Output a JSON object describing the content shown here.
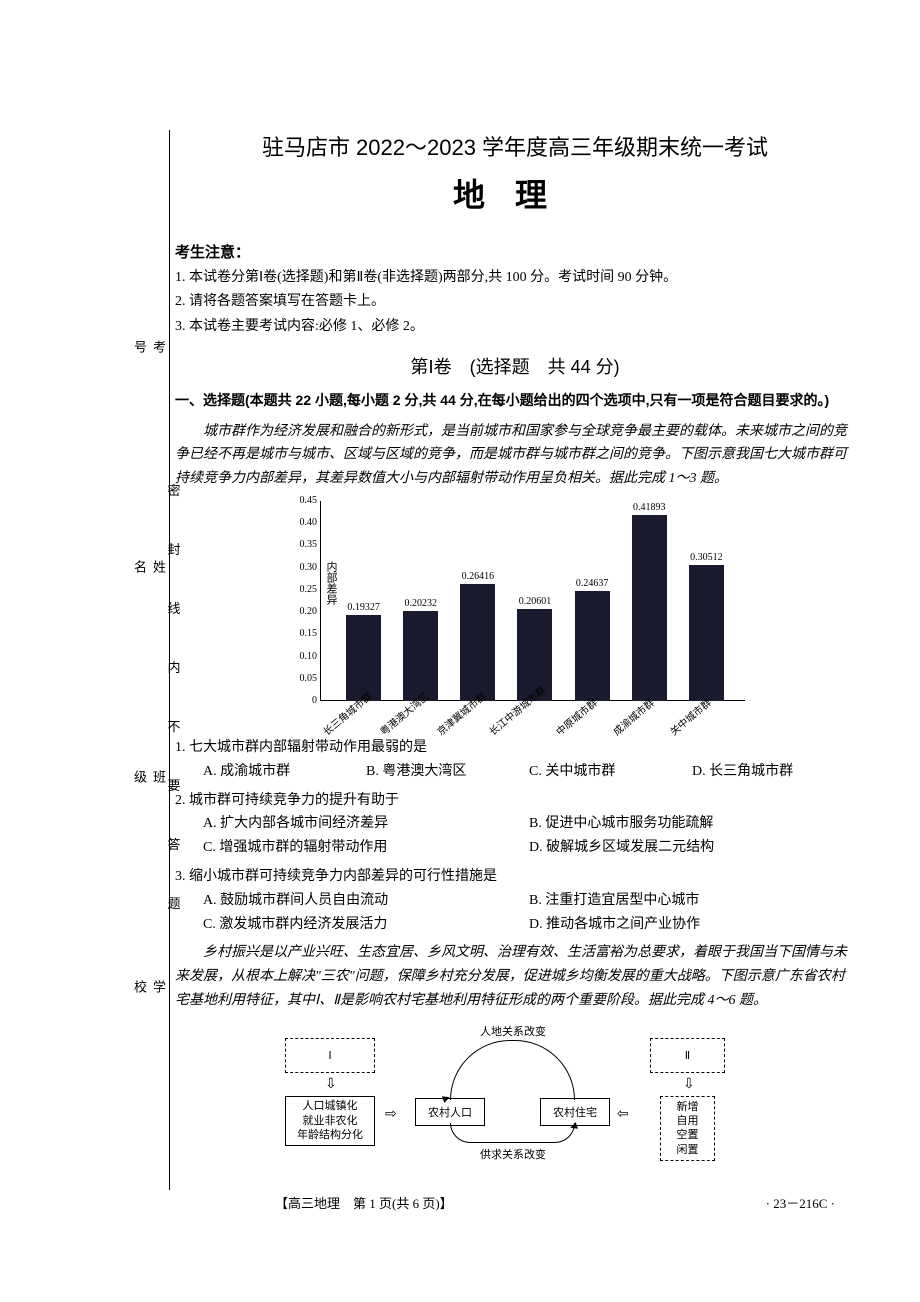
{
  "sidebar": {
    "labels": [
      "学校",
      "班级",
      "姓名",
      "考号"
    ],
    "sealing": [
      "密",
      "封",
      "线",
      "内",
      "不",
      "要",
      "答",
      "题"
    ]
  },
  "header": {
    "title": "驻马店市 2022～2023 学年度高三年级期末统一考试",
    "subject": "地理"
  },
  "notice": {
    "title": "考生注意：",
    "items": [
      "1. 本试卷分第Ⅰ卷(选择题)和第Ⅱ卷(非选择题)两部分,共 100 分。考试时间 90 分钟。",
      "2. 请将各题答案填写在答题卡上。",
      "3. 本试卷主要考试内容:必修 1、必修 2。"
    ]
  },
  "section1": {
    "title": "第Ⅰ卷　(选择题　共 44 分)",
    "header": "一、选择题(本题共 22 小题,每小题 2 分,共 44 分,在每小题给出的四个选项中,只有一项是符合题目要求的。)"
  },
  "passage1": "城市群作为经济发展和融合的新形式，是当前城市和国家参与全球竞争最主要的载体。未来城市之间的竞争已经不再是城市与城市、区域与区域的竞争，而是城市群与城市群之间的竞争。下图示意我国七大城市群可持续竞争力内部差异，其差异数值大小与内部辐射带动作用呈负相关。据此完成 1～3 题。",
  "chart": {
    "ylabel": "内部差异",
    "ymax": 0.45,
    "ystep": 0.05,
    "yticks": [
      "0",
      "0.05",
      "0.10",
      "0.15",
      "0.20",
      "0.25",
      "0.30",
      "0.35",
      "0.40",
      "0.45"
    ],
    "bar_color": "#1a1a2e",
    "bars": [
      {
        "label": "长三角城市群",
        "value": 0.19327,
        "display": "0.19327"
      },
      {
        "label": "粤港澳大湾区",
        "value": 0.20232,
        "display": "0.20232"
      },
      {
        "label": "京津冀城市群",
        "value": 0.26416,
        "display": "0.26416"
      },
      {
        "label": "长江中游城市群",
        "value": 0.20601,
        "display": "0.20601"
      },
      {
        "label": "中原城市群",
        "value": 0.24637,
        "display": "0.24637"
      },
      {
        "label": "成渝城市群",
        "value": 0.41893,
        "display": "0.41893"
      },
      {
        "label": "关中城市群",
        "value": 0.30512,
        "display": "0.30512"
      }
    ]
  },
  "q1": {
    "text": "1. 七大城市群内部辐射带动作用最弱的是",
    "opts": [
      "A. 成渝城市群",
      "B. 粤港澳大湾区",
      "C. 关中城市群",
      "D. 长三角城市群"
    ]
  },
  "q2": {
    "text": "2. 城市群可持续竞争力的提升有助于",
    "opts": [
      "A. 扩大内部各城市间经济差异",
      "B. 促进中心城市服务功能疏解",
      "C. 增强城市群的辐射带动作用",
      "D. 破解城乡区域发展二元结构"
    ]
  },
  "q3": {
    "text": "3. 缩小城市群可持续竞争力内部差异的可行性措施是",
    "opts": [
      "A. 鼓励城市群间人员自由流动",
      "B. 注重打造宜居型中心城市",
      "C. 激发城市群内经济发展活力",
      "D. 推动各城市之间产业协作"
    ]
  },
  "passage2": "乡村振兴是以产业兴旺、生态宜居、乡风文明、治理有效、生活富裕为总要求，着眼于我国当下国情与未来发展，从根本上解决\"三农\"问题，保障乡村充分发展，促进城乡均衡发展的重大战略。下图示意广东省农村宅基地利用特征，其中Ⅰ、Ⅱ是影响农村宅基地利用特征形成的两个重要阶段。据此完成 4～6 题。",
  "diagram": {
    "box_I": "Ⅰ",
    "box_I_sub": "人口城镇化\n就业非农化\n年龄结构分化",
    "box_pop": "农村人口",
    "box_house": "农村住宅",
    "top_text": "人地关系改变",
    "bottom_text": "供求关系改变",
    "box_II": "Ⅱ",
    "box_II_sub": "新增\n自用\n空置\n闲置"
  },
  "footer": {
    "page": "【高三地理　第 1 页(共 6 页)】",
    "code": "· 23－216C ·"
  }
}
